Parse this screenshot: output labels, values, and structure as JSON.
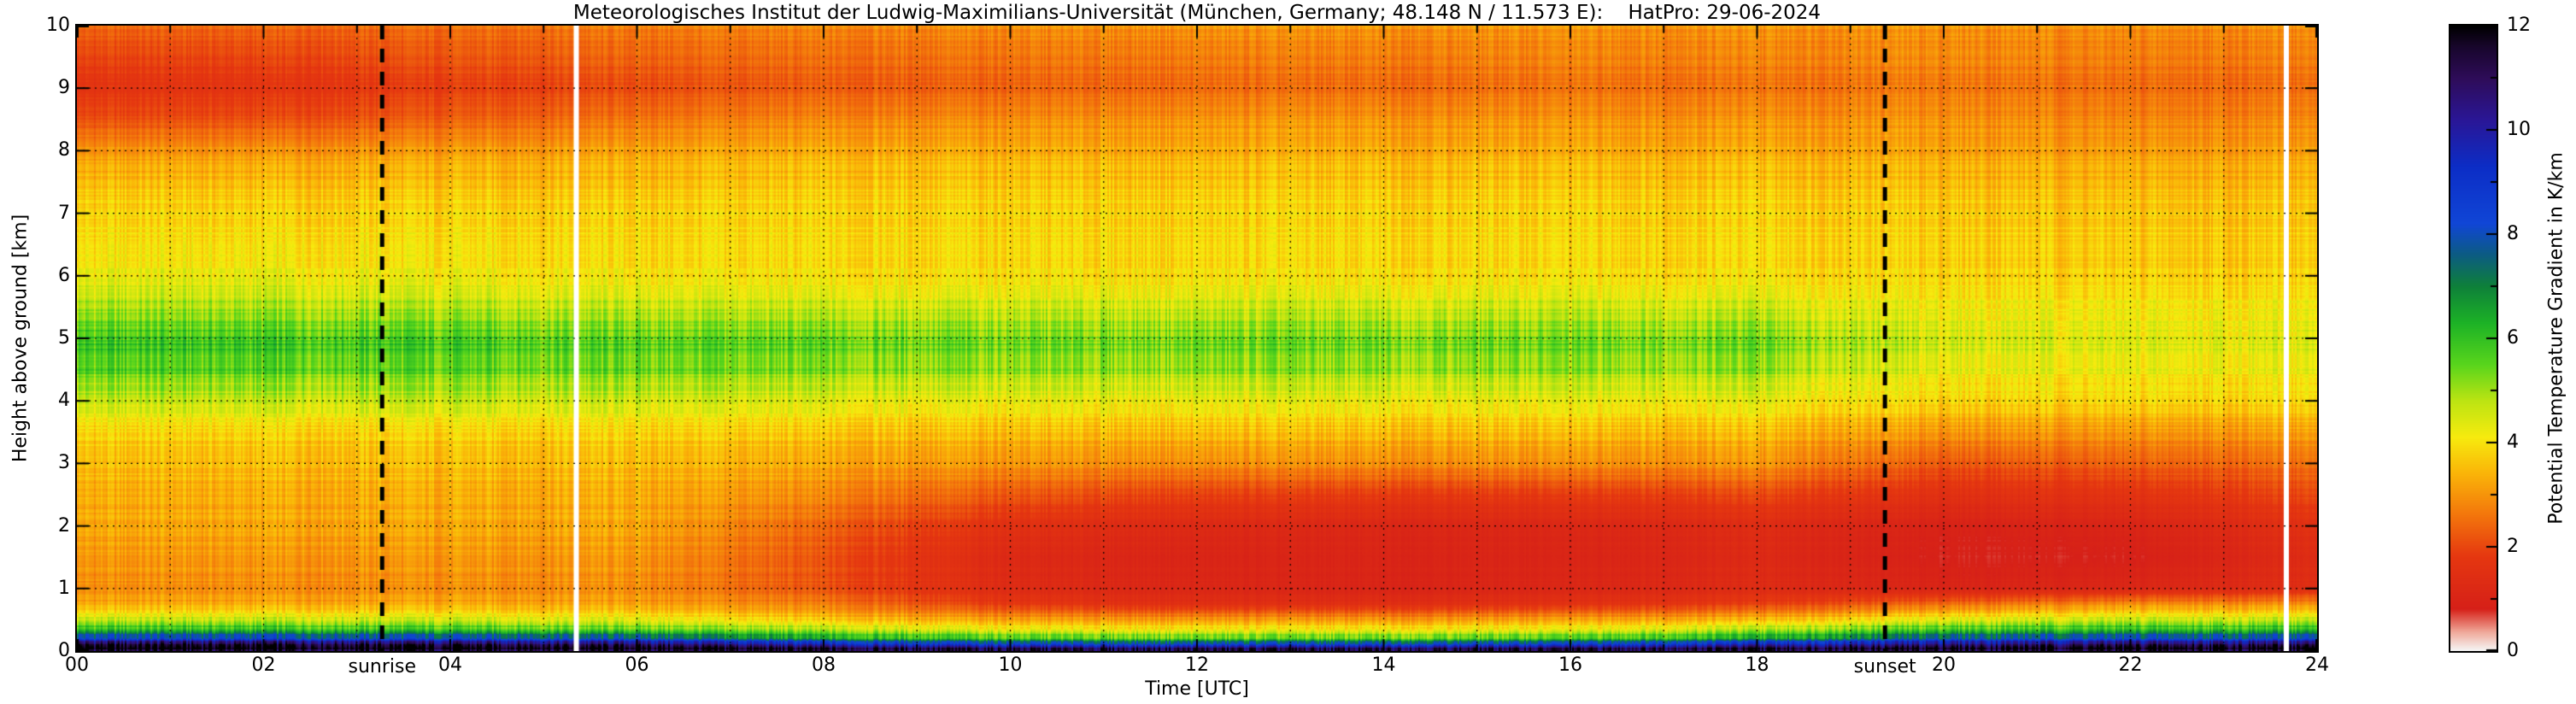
{
  "chart": {
    "background": "#ffffff",
    "axis_color": "#000000",
    "grid_style": "dotted-black-hourly-and-per-km",
    "sun_line_color": "#000000",
    "gap_color": "#ffffff"
  },
  "chart_data": {
    "type": "heatmap",
    "title": "Meteorologisches Institut der Ludwig-Maximilians-Universität (München, Germany; 48.148 N / 11.573 E):    HatPro: 29-06-2024",
    "xlabel": "Time [UTC]",
    "ylabel": "Height above ground [km]",
    "colorbar_label": "Potential Temperature Gradient in K/km",
    "xlim": [
      0,
      24
    ],
    "ylim": [
      0,
      10
    ],
    "clim": [
      0,
      12
    ],
    "x_ticks": {
      "positions": [
        0,
        2,
        4,
        6,
        8,
        10,
        12,
        14,
        16,
        18,
        20,
        22,
        24
      ],
      "labels": [
        "00",
        "02",
        "04",
        "06",
        "08",
        "10",
        "12",
        "14",
        "16",
        "18",
        "20",
        "22",
        "24"
      ],
      "minor_every": 1
    },
    "y_ticks": {
      "positions": [
        0,
        1,
        2,
        3,
        4,
        5,
        6,
        7,
        8,
        9,
        10
      ],
      "labels": [
        "0",
        "1",
        "2",
        "3",
        "4",
        "5",
        "6",
        "7",
        "8",
        "9",
        "10"
      ]
    },
    "colorbar_ticks": {
      "positions": [
        0,
        2,
        4,
        6,
        8,
        10,
        12
      ],
      "labels": [
        "0",
        "2",
        "4",
        "6",
        "8",
        "10",
        "12"
      ],
      "minor_every": 1
    },
    "annotations": {
      "sunrise": {
        "label": "sunrise",
        "time_utc": 3.27
      },
      "sunset": {
        "label": "sunset",
        "time_utc": 19.37
      }
    },
    "data_gaps_utc": [
      5.35,
      23.67
    ],
    "times_utc": [
      0,
      2,
      4,
      6,
      8,
      10,
      12,
      14,
      16,
      18,
      20,
      22,
      24
    ],
    "heights_km": [
      0,
      0.1,
      0.2,
      0.35,
      0.5,
      0.75,
      1,
      1.5,
      2,
      2.5,
      3,
      3.5,
      4,
      4.5,
      5,
      5.5,
      6,
      6.5,
      7,
      7.5,
      8,
      8.5,
      9,
      9.5,
      10
    ],
    "values_K_per_km": [
      [
        12,
        12,
        12,
        12,
        12,
        12,
        12,
        12,
        12,
        12,
        12,
        12,
        12
      ],
      [
        11.5,
        11.5,
        11.3,
        11,
        9.5,
        8.5,
        8.3,
        8.3,
        8.5,
        9.5,
        10.5,
        11,
        11
      ],
      [
        8.5,
        8.5,
        8.3,
        8,
        6.5,
        5.8,
        5.6,
        5.6,
        5.8,
        6.5,
        8,
        8.3,
        8.3
      ],
      [
        6,
        6,
        5.8,
        5.5,
        4.8,
        4.2,
        4.1,
        4.1,
        4.2,
        4.8,
        5.8,
        6,
        6
      ],
      [
        4.6,
        4.6,
        4.5,
        4.3,
        3.6,
        3.1,
        3,
        3,
        3.1,
        3.4,
        4.3,
        4.6,
        4.6
      ],
      [
        3.2,
        3.2,
        3.2,
        3.1,
        2.6,
        1.7,
        1.4,
        1.4,
        1.5,
        1.8,
        2.4,
        2.8,
        2.8
      ],
      [
        2.9,
        2.9,
        2.9,
        2.9,
        2.1,
        1.3,
        1.1,
        1,
        1.1,
        1.3,
        1,
        1.1,
        1.4
      ],
      [
        3,
        3,
        3,
        3,
        2.1,
        1.2,
        1,
        1,
        1,
        1.2,
        0.8,
        0.8,
        1.3
      ],
      [
        3.2,
        3.2,
        3.2,
        3.2,
        2.3,
        1.5,
        1.2,
        1.1,
        1.1,
        1.3,
        0.9,
        1,
        1.5
      ],
      [
        3.3,
        3.3,
        3.3,
        3.3,
        2.8,
        2.2,
        1.9,
        1.8,
        1.8,
        2,
        1.5,
        1.6,
        2
      ],
      [
        3.5,
        3.5,
        3.5,
        3.5,
        3.2,
        3,
        2.9,
        2.9,
        2.9,
        3,
        2.2,
        2.3,
        2.5
      ],
      [
        3.8,
        3.8,
        3.8,
        3.8,
        3.6,
        3.5,
        3.5,
        3.5,
        3.5,
        3.5,
        3,
        3,
        3.1
      ],
      [
        4.6,
        4.6,
        4.6,
        4.5,
        4.3,
        4.2,
        4.2,
        4.2,
        4.2,
        4.2,
        3.8,
        3.8,
        3.8
      ],
      [
        5.6,
        5.6,
        5.5,
        5.4,
        5.2,
        5.1,
        5.1,
        5.1,
        5.1,
        5.1,
        4.3,
        4.2,
        4.2
      ],
      [
        5.9,
        5.9,
        5.8,
        5.6,
        5.5,
        5.4,
        5.4,
        5.4,
        5.4,
        5.4,
        4.6,
        4.4,
        4.4
      ],
      [
        4.9,
        4.9,
        4.8,
        4.7,
        4.6,
        4.6,
        4.6,
        4.6,
        4.6,
        4.6,
        4.2,
        4.1,
        4.1
      ],
      [
        4.3,
        4.3,
        4.2,
        4.1,
        4,
        4,
        4,
        4,
        4,
        4,
        3.9,
        3.8,
        3.8
      ],
      [
        4,
        4,
        4,
        3.9,
        3.9,
        3.9,
        3.9,
        3.9,
        3.9,
        3.9,
        3.8,
        3.7,
        3.7
      ],
      [
        3.8,
        3.8,
        3.8,
        3.8,
        3.8,
        3.8,
        3.8,
        3.8,
        3.8,
        3.8,
        3.7,
        3.6,
        3.6
      ],
      [
        3.5,
        3.5,
        3.5,
        3.5,
        3.6,
        3.6,
        3.6,
        3.6,
        3.6,
        3.6,
        3.5,
        3.4,
        3.4
      ],
      [
        3,
        3,
        3.1,
        3.2,
        3.3,
        3.3,
        3.3,
        3.3,
        3.3,
        3.3,
        3.2,
        3.1,
        3.1
      ],
      [
        2.1,
        2.1,
        2.3,
        2.6,
        2.8,
        2.9,
        3,
        3,
        3,
        3,
        3,
        2.8,
        2.8
      ],
      [
        1.7,
        1.7,
        1.9,
        2.1,
        2.3,
        2.4,
        2.5,
        2.5,
        2.6,
        2.6,
        2.7,
        2.5,
        2.5
      ],
      [
        1.9,
        1.9,
        2.1,
        2.3,
        2.4,
        2.5,
        2.6,
        2.6,
        2.7,
        2.7,
        2.8,
        2.6,
        2.6
      ],
      [
        2.4,
        2.4,
        2.5,
        2.7,
        2.8,
        2.9,
        3,
        3,
        3,
        3,
        3,
        2.9,
        2.9
      ]
    ],
    "colormap": {
      "note": "value -> rgb stops, low=light gray/red, mid=yellow/green, high=blue/black",
      "stops": [
        [
          0.0,
          245,
          245,
          245
        ],
        [
          0.35,
          240,
          170,
          155
        ],
        [
          0.8,
          214,
          32,
          24
        ],
        [
          1.8,
          229,
          55,
          16
        ],
        [
          2.6,
          243,
          118,
          12
        ],
        [
          3.4,
          250,
          180,
          8
        ],
        [
          4.1,
          247,
          235,
          14
        ],
        [
          4.8,
          188,
          228,
          18
        ],
        [
          5.5,
          88,
          213,
          28
        ],
        [
          6.3,
          28,
          178,
          38
        ],
        [
          7.0,
          14,
          128,
          58
        ],
        [
          7.6,
          12,
          92,
          130
        ],
        [
          8.2,
          16,
          70,
          214
        ],
        [
          9.3,
          12,
          45,
          198
        ],
        [
          10.2,
          42,
          22,
          150
        ],
        [
          11.0,
          46,
          12,
          88
        ],
        [
          11.6,
          24,
          6,
          44
        ],
        [
          12.0,
          0,
          0,
          0
        ]
      ]
    }
  }
}
